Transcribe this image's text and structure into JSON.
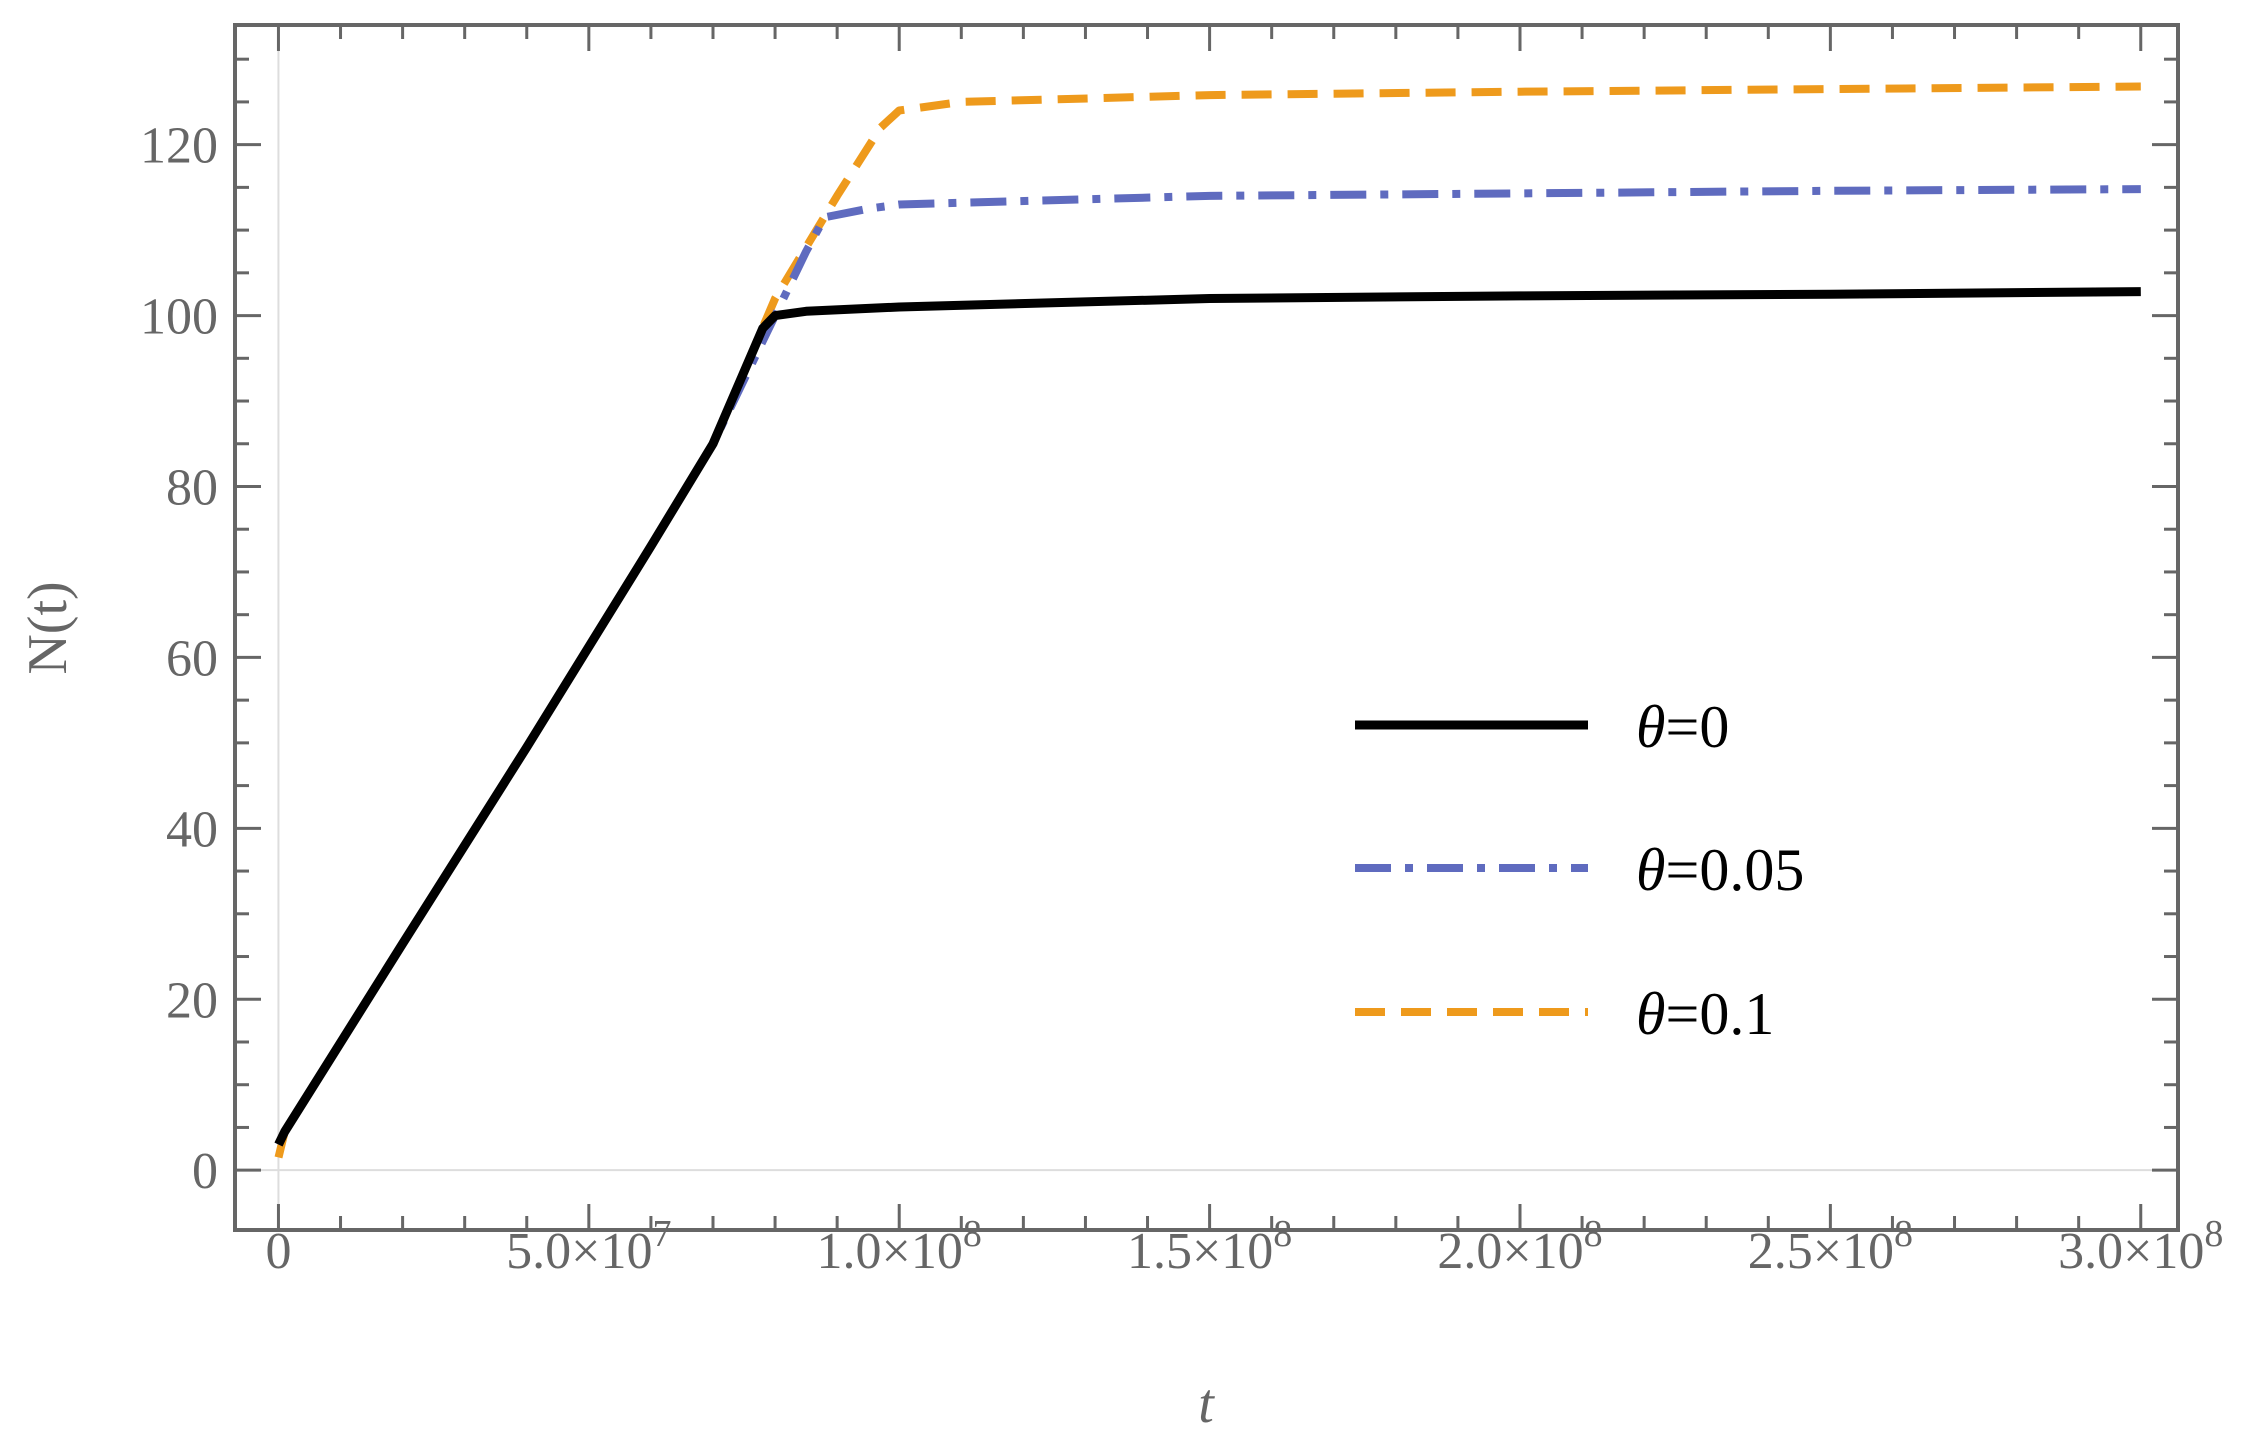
{
  "chart_data": {
    "type": "line",
    "title": "",
    "xlabel": "t",
    "ylabel": "N(t)",
    "xlim": [
      -7000000,
      306000000
    ],
    "ylim": [
      -7,
      134
    ],
    "grid": false,
    "legend_position": "center-right",
    "x_ticks": [
      {
        "value": 0,
        "mantissa": "0",
        "exponent": ""
      },
      {
        "value": 50000000,
        "mantissa": "5.0×10",
        "exponent": "7"
      },
      {
        "value": 100000000,
        "mantissa": "1.0×10",
        "exponent": "8"
      },
      {
        "value": 150000000,
        "mantissa": "1.5×10",
        "exponent": "8"
      },
      {
        "value": 200000000,
        "mantissa": "2.0×10",
        "exponent": "8"
      },
      {
        "value": 250000000,
        "mantissa": "2.5×10",
        "exponent": "8"
      },
      {
        "value": 300000000,
        "mantissa": "3.0×10",
        "exponent": "8"
      }
    ],
    "y_ticks": [
      0,
      20,
      40,
      60,
      80,
      100,
      120
    ],
    "series": [
      {
        "name": "θ=0",
        "color": "#000000",
        "dash": "solid",
        "x": [
          0,
          1000000,
          20000000,
          40000000,
          60000000,
          70000000,
          78000000,
          80000000,
          85000000,
          100000000,
          150000000,
          200000000,
          250000000,
          300000000
        ],
        "y": [
          3,
          4.5,
          26.5,
          49.5,
          73,
          85,
          98.5,
          100,
          100.5,
          101,
          102,
          102.3,
          102.5,
          102.8
        ]
      },
      {
        "name": "θ=0.05",
        "color": "#5f6bbf",
        "dash": "dashdot",
        "x": [
          0,
          1000000,
          20000000,
          40000000,
          60000000,
          70000000,
          80000000,
          85000000,
          88000000,
          95000000,
          100000000,
          150000000,
          200000000,
          250000000,
          300000000
        ],
        "y": [
          3,
          4.5,
          26.5,
          49.5,
          73,
          85,
          100,
          107.5,
          111.5,
          112.5,
          113,
          114,
          114.3,
          114.6,
          114.8
        ]
      },
      {
        "name": "θ=0.1",
        "color": "#ee9a1c",
        "dash": "dashed",
        "x": [
          0,
          1000000,
          20000000,
          40000000,
          60000000,
          70000000,
          80000000,
          90000000,
          97000000,
          100000000,
          110000000,
          150000000,
          200000000,
          250000000,
          300000000
        ],
        "y": [
          1.5,
          4.5,
          26.5,
          49.5,
          73,
          85,
          102,
          114,
          122,
          124,
          125,
          125.8,
          126.2,
          126.5,
          126.8
        ]
      }
    ]
  }
}
